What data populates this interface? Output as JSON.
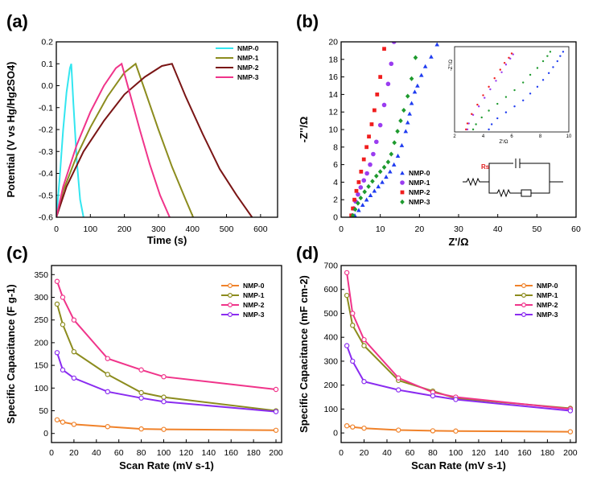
{
  "chart_data": [
    {
      "panel": "(a)",
      "type": "line",
      "xlabel": "Time (s)",
      "ylabel": "Potential (V vs Hg/Hg2SO4)",
      "xlim": [
        0,
        650
      ],
      "ylim": [
        -0.6,
        0.2
      ],
      "xticks": [
        0,
        100,
        200,
        300,
        400,
        500,
        600
      ],
      "yticks": [
        -0.6,
        -0.5,
        -0.4,
        -0.3,
        -0.2,
        -0.1,
        0.0,
        0.1,
        0.2
      ],
      "legend_position": "top-right",
      "series": [
        {
          "name": "NMP-0",
          "color": "#33e6f0",
          "x": [
            0,
            10,
            20,
            30,
            40,
            44,
            50,
            60,
            70,
            80
          ],
          "y": [
            -0.6,
            -0.42,
            -0.2,
            -0.03,
            0.08,
            0.1,
            -0.08,
            -0.34,
            -0.52,
            -0.6
          ]
        },
        {
          "name": "NMP-1",
          "color": "#8c8c1e",
          "x": [
            0,
            20,
            60,
            100,
            150,
            200,
            233,
            260,
            300,
            340,
            380,
            402
          ],
          "y": [
            -0.6,
            -0.48,
            -0.32,
            -0.19,
            -0.05,
            0.06,
            0.1,
            -0.02,
            -0.2,
            -0.37,
            -0.52,
            -0.6
          ]
        },
        {
          "name": "NMP-2",
          "color": "#7a1515",
          "x": [
            0,
            30,
            80,
            140,
            200,
            260,
            310,
            340,
            380,
            430,
            480,
            530,
            575
          ],
          "y": [
            -0.6,
            -0.46,
            -0.3,
            -0.16,
            -0.04,
            0.04,
            0.09,
            0.1,
            -0.05,
            -0.22,
            -0.38,
            -0.5,
            -0.6
          ]
        },
        {
          "name": "NMP-3",
          "color": "#f0348a",
          "x": [
            0,
            20,
            60,
            100,
            140,
            175,
            192,
            215,
            245,
            275,
            305,
            333
          ],
          "y": [
            -0.6,
            -0.46,
            -0.27,
            -0.12,
            0.0,
            0.08,
            0.1,
            -0.03,
            -0.2,
            -0.36,
            -0.5,
            -0.6
          ]
        }
      ]
    },
    {
      "panel": "(b)",
      "type": "scatter",
      "xlabel": "Z'/Ω",
      "ylabel": "-Z''/Ω",
      "xlim": [
        0,
        60
      ],
      "ylim": [
        0,
        20
      ],
      "xticks": [
        0,
        10,
        20,
        30,
        40,
        50,
        60
      ],
      "yticks": [
        0,
        2,
        4,
        6,
        8,
        10,
        12,
        14,
        16,
        18,
        20
      ],
      "legend_position": "lower-middle",
      "circuit_label": "Rs",
      "series": [
        {
          "name": "NMP-0",
          "color": "#1f3cf0",
          "marker": "triangle",
          "x": [
            3.5,
            4.5,
            5.5,
            6.5,
            7.5,
            8.5,
            9.5,
            10.5,
            11.5,
            12.5,
            13.5,
            14.5,
            15.5,
            16.5,
            17.0,
            17.5,
            18.0,
            18.8,
            19.5,
            20.5,
            21.5,
            23.0,
            24.5
          ],
          "y": [
            0.2,
            0.8,
            1.4,
            2.0,
            2.5,
            3.0,
            3.5,
            4.0,
            4.6,
            5.2,
            6.0,
            7.0,
            8.2,
            9.8,
            10.8,
            11.8,
            13.0,
            14.3,
            15.0,
            16.2,
            17.2,
            18.3,
            19.7
          ]
        },
        {
          "name": "NMP-1",
          "color": "#9a3cf0",
          "marker": "circle",
          "x": [
            2.8,
            3.2,
            3.7,
            4.3,
            5.0,
            5.8,
            6.6,
            7.4,
            8.2,
            9.0,
            10.0,
            11.0,
            12.0,
            12.8,
            13.5
          ],
          "y": [
            0.2,
            1.0,
            1.8,
            2.6,
            3.4,
            4.2,
            5.0,
            6.0,
            7.2,
            8.6,
            10.5,
            12.8,
            15.2,
            17.5,
            20.0
          ]
        },
        {
          "name": "NMP-2",
          "color": "#f01e1e",
          "marker": "square",
          "x": [
            2.6,
            3.0,
            3.4,
            3.9,
            4.5,
            5.1,
            5.8,
            6.5,
            7.1,
            7.8,
            8.5,
            9.2,
            10.0,
            11.0
          ],
          "y": [
            0.2,
            1.0,
            2.0,
            3.0,
            4.0,
            5.2,
            6.6,
            8.0,
            9.2,
            10.6,
            12.2,
            14.0,
            16.0,
            19.2
          ]
        },
        {
          "name": "NMP-3",
          "color": "#1e9a2e",
          "marker": "diamond",
          "x": [
            3.0,
            3.6,
            4.3,
            5.0,
            6.0,
            7.0,
            8.0,
            9.0,
            10.0,
            11.0,
            12.0,
            12.8,
            13.6,
            14.4,
            15.2,
            16.0,
            17.0,
            18.0,
            19.0
          ],
          "y": [
            0.2,
            0.9,
            1.6,
            2.2,
            2.9,
            3.5,
            4.1,
            4.7,
            5.2,
            5.7,
            6.3,
            7.2,
            8.5,
            9.8,
            11.0,
            12.2,
            13.8,
            15.8,
            18.2
          ]
        }
      ],
      "inset": {
        "xlabel": "Z'/Ω",
        "ylabel": "-Z''/Ω",
        "xlim": [
          2,
          10
        ],
        "ylim": [
          0,
          10
        ],
        "xticks": [
          2,
          4,
          6,
          8,
          10
        ],
        "series": [
          {
            "name": "NMP-0",
            "color": "#1f3cf0",
            "x": [
              4.4,
              4.6,
              5.0,
              5.6,
              6.2,
              6.8,
              7.3,
              7.8,
              8.2,
              8.6,
              8.9,
              9.2,
              9.4,
              9.6
            ],
            "y": [
              0.3,
              0.9,
              1.6,
              2.3,
              3.0,
              3.7,
              4.5,
              5.3,
              6.1,
              6.9,
              7.6,
              8.3,
              8.9,
              9.4
            ]
          },
          {
            "name": "NMP-1",
            "color": "#9a3cf0",
            "x": [
              2.9,
              3.0,
              3.3,
              3.7,
              4.1,
              4.5,
              4.9,
              5.3,
              5.6,
              5.9,
              6.1
            ],
            "y": [
              0.3,
              1.0,
              2.0,
              3.0,
              4.0,
              5.0,
              6.0,
              7.0,
              7.9,
              8.6,
              9.1
            ]
          },
          {
            "name": "NMP-2",
            "color": "#f01e1e",
            "x": [
              2.8,
              2.9,
              3.2,
              3.6,
              4.0,
              4.4,
              4.8,
              5.2,
              5.5,
              5.8,
              6.0
            ],
            "y": [
              0.3,
              1.0,
              2.1,
              3.2,
              4.3,
              5.3,
              6.3,
              7.3,
              8.1,
              8.7,
              9.2
            ]
          },
          {
            "name": "NMP-3",
            "color": "#1e9a2e",
            "x": [
              3.3,
              3.5,
              3.9,
              4.4,
              5.0,
              5.6,
              6.2,
              6.8,
              7.3,
              7.8,
              8.2,
              8.5,
              8.7
            ],
            "y": [
              0.3,
              0.9,
              1.7,
              2.5,
              3.3,
              4.1,
              4.9,
              5.8,
              6.7,
              7.5,
              8.3,
              8.9,
              9.4
            ]
          }
        ]
      }
    },
    {
      "panel": "(c)",
      "type": "line",
      "xlabel": "Scan Rate (mV s-1)",
      "ylabel": "Specific Capacitance (F g-1)",
      "xlim": [
        0,
        205
      ],
      "ylim": [
        -20,
        370
      ],
      "xticks": [
        0,
        20,
        40,
        60,
        80,
        100,
        120,
        140,
        160,
        180,
        200
      ],
      "yticks": [
        0,
        50,
        100,
        150,
        200,
        250,
        300,
        350
      ],
      "legend_position": "top-right",
      "series": [
        {
          "name": "NMP-0",
          "color": "#f0822a",
          "x": [
            5,
            10,
            20,
            50,
            80,
            100,
            200
          ],
          "y": [
            30,
            25,
            20,
            15,
            10,
            9,
            7
          ]
        },
        {
          "name": "NMP-1",
          "color": "#8c8c1e",
          "x": [
            5,
            10,
            20,
            50,
            80,
            100,
            200
          ],
          "y": [
            285,
            240,
            180,
            130,
            90,
            80,
            50
          ]
        },
        {
          "name": "NMP-2",
          "color": "#f0348a",
          "x": [
            5,
            10,
            20,
            50,
            80,
            100,
            200
          ],
          "y": [
            335,
            300,
            250,
            165,
            140,
            125,
            97
          ]
        },
        {
          "name": "NMP-3",
          "color": "#8a2cf0",
          "x": [
            5,
            10,
            20,
            50,
            80,
            100,
            200
          ],
          "y": [
            178,
            140,
            122,
            92,
            78,
            70,
            48
          ]
        }
      ]
    },
    {
      "panel": "(d)",
      "type": "line",
      "xlabel": "Scan Rate (mV s-1)",
      "ylabel": "Specific Capacitance (mF cm-2)",
      "xlim": [
        0,
        205
      ],
      "ylim": [
        -40,
        700
      ],
      "xticks": [
        0,
        20,
        40,
        60,
        80,
        100,
        120,
        140,
        160,
        180,
        200
      ],
      "yticks": [
        0,
        100,
        200,
        300,
        400,
        500,
        600,
        700
      ],
      "legend_position": "top-right",
      "series": [
        {
          "name": "NMP-0",
          "color": "#f0822a",
          "x": [
            5,
            10,
            20,
            50,
            80,
            100,
            200
          ],
          "y": [
            30,
            25,
            20,
            12,
            9,
            8,
            5
          ]
        },
        {
          "name": "NMP-1",
          "color": "#8c8c1e",
          "x": [
            5,
            10,
            20,
            50,
            80,
            100,
            200
          ],
          "y": [
            575,
            450,
            365,
            220,
            175,
            145,
            103
          ]
        },
        {
          "name": "NMP-2",
          "color": "#f0348a",
          "x": [
            5,
            10,
            20,
            50,
            80,
            100,
            200
          ],
          "y": [
            670,
            500,
            390,
            230,
            170,
            150,
            100
          ]
        },
        {
          "name": "NMP-3",
          "color": "#8a2cf0",
          "x": [
            5,
            10,
            20,
            50,
            80,
            100,
            200
          ],
          "y": [
            365,
            300,
            215,
            180,
            155,
            140,
            93
          ]
        }
      ]
    }
  ]
}
